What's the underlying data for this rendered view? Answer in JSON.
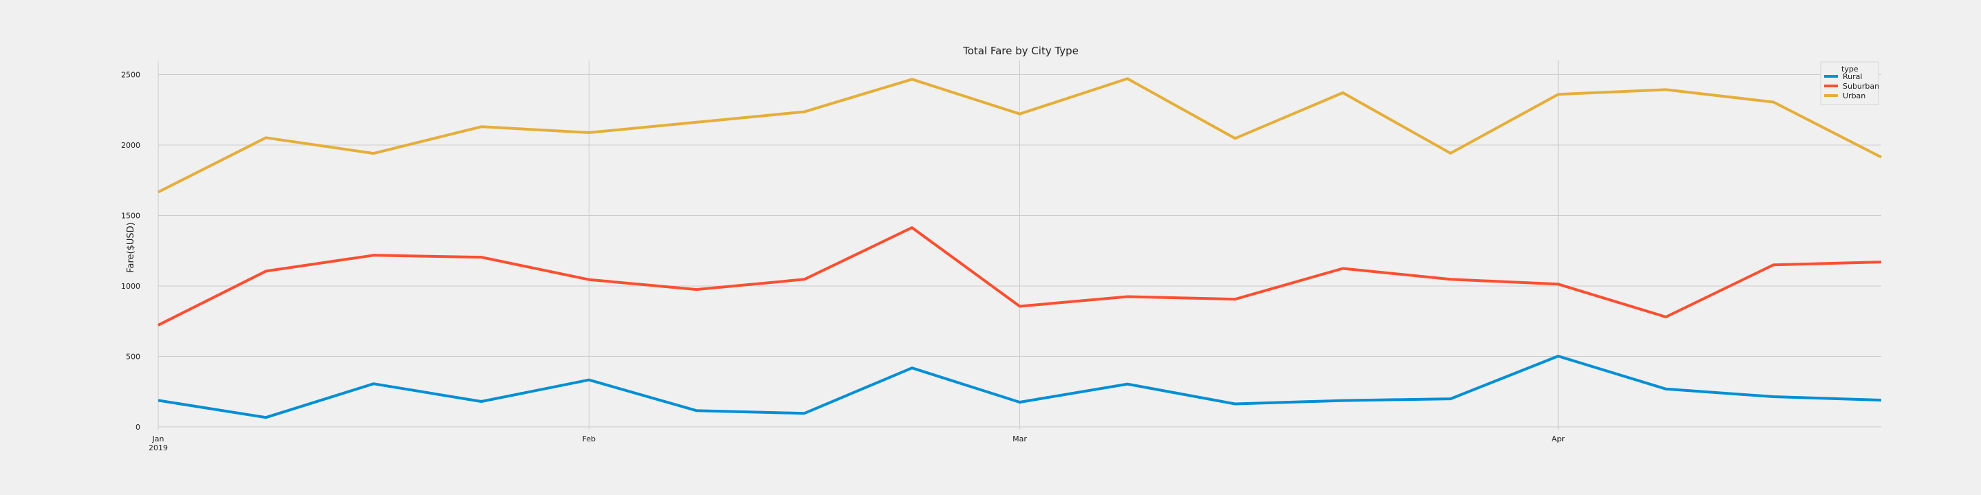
{
  "chart_data": {
    "type": "line",
    "title": "Total Fare by City Type",
    "xlabel": "",
    "ylabel": "Fare($USD)",
    "x": [
      "2019-01-06",
      "2019-01-13",
      "2019-01-20",
      "2019-01-27",
      "2019-02-03",
      "2019-02-10",
      "2019-02-17",
      "2019-02-24",
      "2019-03-03",
      "2019-03-10",
      "2019-03-17",
      "2019-03-24",
      "2019-03-31",
      "2019-04-07",
      "2019-04-14",
      "2019-04-21",
      "2019-04-28"
    ],
    "x_ticks": [
      {
        "date": "2019-01-06",
        "label": "Jan",
        "sublabel": "2019"
      },
      {
        "date": "2019-02-03",
        "label": "Feb",
        "sublabel": ""
      },
      {
        "date": "2019-03-03",
        "label": "Mar",
        "sublabel": ""
      },
      {
        "date": "2019-04-07",
        "label": "Apr",
        "sublabel": ""
      }
    ],
    "xlim": [
      "2019-01-06",
      "2019-04-28"
    ],
    "ylim": [
      -20,
      2600
    ],
    "y_ticks": [
      0,
      500,
      1000,
      1500,
      2000,
      2500
    ],
    "grid": true,
    "legend": {
      "title": "type",
      "placement": "top-right"
    },
    "series": [
      {
        "name": "Rural",
        "color": "#008fd5",
        "values": [
          188,
          67,
          306,
          180,
          333,
          115,
          96,
          418,
          175,
          304,
          163,
          187,
          199,
          502,
          269,
          214,
          190
        ]
      },
      {
        "name": "Suburban",
        "color": "#fc4f30",
        "values": [
          722,
          1105,
          1218,
          1204,
          1045,
          975,
          1047,
          1414,
          856,
          924,
          906,
          1124,
          1047,
          1013,
          780,
          1150,
          1170
        ]
      },
      {
        "name": "Urban",
        "color": "#e5ae38",
        "values": [
          1666,
          2052,
          1941,
          2130,
          2088,
          2162,
          2236,
          2467,
          2221,
          2471,
          2047,
          2371,
          1942,
          2360,
          2393,
          2305,
          1914
        ]
      }
    ]
  }
}
